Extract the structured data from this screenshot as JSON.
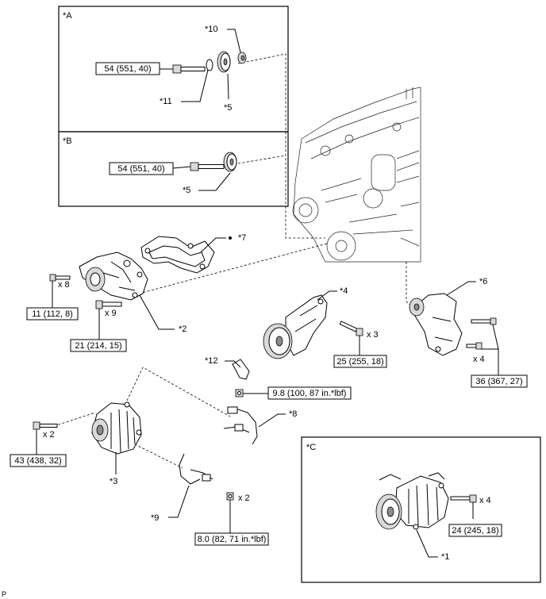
{
  "insets": {
    "a": "*A",
    "b": "*B",
    "c": "*C"
  },
  "callouts": {
    "c1": "*1",
    "c2": "*2",
    "c3": "*3",
    "c4": "*4",
    "c5a": "*5",
    "c5b": "*5",
    "c6": "*6",
    "c7": "*7",
    "c8": "*8",
    "c9": "*9",
    "c10": "*10",
    "c11": "*11",
    "c12": "*12"
  },
  "torque": {
    "t_a": "54 (551, 40)",
    "t_b": "54 (551, 40)",
    "t_pump_small": "11 (112, 8)",
    "t_pump_large": "21 (214, 15)",
    "t_idler_bracket": "25 (255, 18)",
    "t_tensioner": "36 (367, 27)",
    "t_hose": "9.8 (100, 87 in.*lbf)",
    "t_alternator": "43 (438, 32)",
    "t_wire": "8.0 (82, 71 in.*lbf)",
    "t_compressor": "24 (245, 18)"
  },
  "quantities": {
    "q_pump_small": "x 8",
    "q_pump_large": "x 9",
    "q_idler": "x 3",
    "q_tensioner": "x 4",
    "q_alternator": "x 2",
    "q_wire": "x 2",
    "q_compressor": "x 4"
  },
  "footer": "P"
}
